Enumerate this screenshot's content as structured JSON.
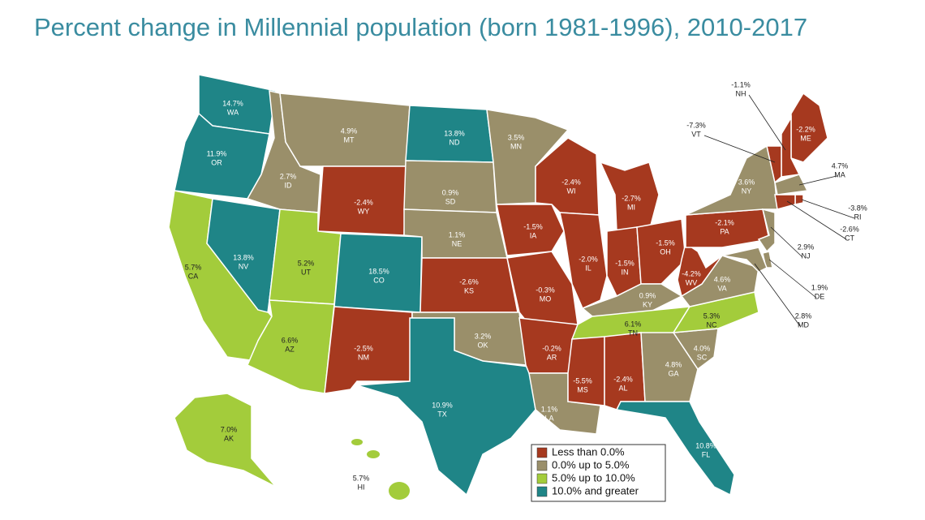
{
  "title": "Percent change in Millennial population (born 1981-1996), 2010-2017",
  "states": [
    {
      "code": "WA",
      "label": "14.7%",
      "color": "#1f8587"
    },
    {
      "code": "OR",
      "label": "11.9%",
      "color": "#1f8587"
    },
    {
      "code": "CA",
      "label": "5.7%",
      "color": "#a3cc3b"
    },
    {
      "code": "NV",
      "label": "13.8%",
      "color": "#1f8587"
    },
    {
      "code": "ID",
      "label": "2.7%",
      "color": "#9a8f6a"
    },
    {
      "code": "MT",
      "label": "4.9%",
      "color": "#9a8f6a"
    },
    {
      "code": "WY",
      "label": "-2.4%",
      "color": "#a6391f"
    },
    {
      "code": "UT",
      "label": "5.2%",
      "color": "#a3cc3b"
    },
    {
      "code": "CO",
      "label": "18.5%",
      "color": "#1f8587"
    },
    {
      "code": "AZ",
      "label": "6.6%",
      "color": "#a3cc3b"
    },
    {
      "code": "NM",
      "label": "-2.5%",
      "color": "#a6391f"
    },
    {
      "code": "ND",
      "label": "13.8%",
      "color": "#1f8587"
    },
    {
      "code": "SD",
      "label": "0.9%",
      "color": "#9a8f6a"
    },
    {
      "code": "NE",
      "label": "1.1%",
      "color": "#9a8f6a"
    },
    {
      "code": "KS",
      "label": "-2.6%",
      "color": "#a6391f"
    },
    {
      "code": "OK",
      "label": "3.2%",
      "color": "#9a8f6a"
    },
    {
      "code": "TX",
      "label": "10.9%",
      "color": "#1f8587"
    },
    {
      "code": "MN",
      "label": "3.5%",
      "color": "#9a8f6a"
    },
    {
      "code": "IA",
      "label": "-1.5%",
      "color": "#a6391f"
    },
    {
      "code": "MO",
      "label": "-0.3%",
      "color": "#a6391f"
    },
    {
      "code": "AR",
      "label": "-0.2%",
      "color": "#a6391f"
    },
    {
      "code": "LA",
      "label": "1.1%",
      "color": "#9a8f6a"
    },
    {
      "code": "WI",
      "label": "-2.4%",
      "color": "#a6391f"
    },
    {
      "code": "IL",
      "label": "-2.0%",
      "color": "#a6391f"
    },
    {
      "code": "MI",
      "label": "-2.7%",
      "color": "#a6391f"
    },
    {
      "code": "IN",
      "label": "-1.5%",
      "color": "#a6391f"
    },
    {
      "code": "OH",
      "label": "-1.5%",
      "color": "#a6391f"
    },
    {
      "code": "KY",
      "label": "0.9%",
      "color": "#9a8f6a"
    },
    {
      "code": "TN",
      "label": "6.1%",
      "color": "#a3cc3b"
    },
    {
      "code": "MS",
      "label": "-5.5%",
      "color": "#a6391f"
    },
    {
      "code": "AL",
      "label": "-2.4%",
      "color": "#a6391f"
    },
    {
      "code": "GA",
      "label": "4.8%",
      "color": "#9a8f6a"
    },
    {
      "code": "FL",
      "label": "10.8%",
      "color": "#1f8587"
    },
    {
      "code": "SC",
      "label": "4.0%",
      "color": "#9a8f6a"
    },
    {
      "code": "NC",
      "label": "5.3%",
      "color": "#a3cc3b"
    },
    {
      "code": "VA",
      "label": "4.6%",
      "color": "#9a8f6a"
    },
    {
      "code": "WV",
      "label": "-4.2%",
      "color": "#a6391f"
    },
    {
      "code": "PA",
      "label": "-2.1%",
      "color": "#a6391f"
    },
    {
      "code": "NY",
      "label": "3.6%",
      "color": "#9a8f6a"
    },
    {
      "code": "ME",
      "label": "-2.2%",
      "color": "#a6391f"
    },
    {
      "code": "NH",
      "label": "-1.1%",
      "color": "#a6391f"
    },
    {
      "code": "VT",
      "label": "-7.3%",
      "color": "#a6391f"
    },
    {
      "code": "MA",
      "label": "4.7%",
      "color": "#9a8f6a"
    },
    {
      "code": "RI",
      "label": "-3.8%",
      "color": "#a6391f"
    },
    {
      "code": "CT",
      "label": "-2.6%",
      "color": "#a6391f"
    },
    {
      "code": "NJ",
      "label": "2.9%",
      "color": "#9a8f6a"
    },
    {
      "code": "DE",
      "label": "1.9%",
      "color": "#9a8f6a"
    },
    {
      "code": "MD",
      "label": "2.8%",
      "color": "#9a8f6a"
    },
    {
      "code": "AK",
      "label": "7.0%",
      "color": "#a3cc3b"
    },
    {
      "code": "HI",
      "label": "5.7%",
      "color": "#a3cc3b"
    }
  ],
  "legend": [
    {
      "label": "Less than 0.0%",
      "color": "#a6391f"
    },
    {
      "label": "0.0% up to 5.0%",
      "color": "#9a8f6a"
    },
    {
      "label": "5.0% up to 10.0%",
      "color": "#a3cc3b"
    },
    {
      "label": "10.0% and greater",
      "color": "#1f8587"
    }
  ]
}
